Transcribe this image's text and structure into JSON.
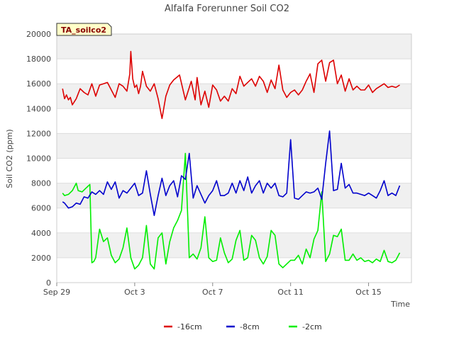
{
  "chart_data": {
    "type": "line",
    "title": "Alfalfa Forerunner Soil CO2",
    "xlabel": "Time",
    "ylabel": "Soil CO2 (ppm)",
    "ylim": [
      0,
      20000
    ],
    "xlim": [
      0,
      18.2
    ],
    "yticks": [
      0,
      2000,
      4000,
      6000,
      8000,
      10000,
      12000,
      14000,
      16000,
      18000,
      20000
    ],
    "yticklabels": [
      "0",
      "2000",
      "4000",
      "6000",
      "8000",
      "10000",
      "12000",
      "14000",
      "16000",
      "18000",
      "20000"
    ],
    "xticks": [
      0,
      4,
      8,
      12,
      16
    ],
    "xticklabels": [
      "Sep 29",
      "Oct 3",
      "Oct 7",
      "Oct 11",
      "Oct 15"
    ],
    "banded_background": true,
    "badge": "TA_soilco2",
    "legend_position": "bottom-center",
    "series": [
      {
        "name": "-16cm",
        "color": "#dd0000",
        "x": [
          0.3,
          0.4,
          0.5,
          0.6,
          0.7,
          0.8,
          1.0,
          1.2,
          1.4,
          1.6,
          1.8,
          2.0,
          2.2,
          2.4,
          2.6,
          2.8,
          3.0,
          3.2,
          3.4,
          3.6,
          3.75,
          3.8,
          3.9,
          4.0,
          4.1,
          4.2,
          4.3,
          4.4,
          4.6,
          4.8,
          5.0,
          5.2,
          5.4,
          5.6,
          5.8,
          6.0,
          6.3,
          6.6,
          6.9,
          7.1,
          7.2,
          7.4,
          7.6,
          7.8,
          8.0,
          8.2,
          8.4,
          8.6,
          8.8,
          9.0,
          9.2,
          9.4,
          9.6,
          9.8,
          10.0,
          10.2,
          10.4,
          10.6,
          10.8,
          11.0,
          11.2,
          11.4,
          11.6,
          11.8,
          12.0,
          12.2,
          12.4,
          12.6,
          12.8,
          13.0,
          13.2,
          13.4,
          13.6,
          13.8,
          14.0,
          14.2,
          14.4,
          14.6,
          14.8,
          15.0,
          15.2,
          15.4,
          15.6,
          15.8,
          16.0,
          16.2,
          16.4,
          16.6,
          16.8,
          17.0,
          17.2,
          17.4,
          17.6
        ],
        "values": [
          15600,
          14800,
          15100,
          14700,
          14900,
          14300,
          14800,
          15600,
          15300,
          15100,
          16000,
          15000,
          15900,
          16000,
          16100,
          15500,
          14900,
          16000,
          15800,
          15400,
          16800,
          18600,
          16400,
          15700,
          15900,
          15200,
          15800,
          17000,
          15800,
          15400,
          16000,
          14800,
          13200,
          15000,
          15900,
          16300,
          16700,
          14700,
          16200,
          14700,
          16500,
          14300,
          15400,
          14100,
          15900,
          15500,
          14600,
          15000,
          14600,
          15600,
          15200,
          16600,
          15800,
          16100,
          16400,
          15800,
          16600,
          16200,
          15300,
          16300,
          15600,
          17500,
          15500,
          14900,
          15300,
          15500,
          15100,
          15500,
          16200,
          16800,
          15300,
          17600,
          17900,
          16200,
          17700,
          17900,
          16000,
          16700,
          15400,
          16400,
          15500,
          15800,
          15500,
          15500,
          15900,
          15300,
          15600,
          15800,
          16000,
          15700,
          15800,
          15700,
          15900
        ]
      },
      {
        "name": "-8cm",
        "color": "#0000cc",
        "x": [
          0.3,
          0.4,
          0.6,
          0.8,
          1.0,
          1.2,
          1.4,
          1.6,
          1.8,
          2.0,
          2.2,
          2.4,
          2.6,
          2.8,
          3.0,
          3.2,
          3.4,
          3.6,
          3.8,
          4.0,
          4.2,
          4.4,
          4.6,
          4.8,
          5.0,
          5.2,
          5.4,
          5.6,
          5.8,
          6.0,
          6.2,
          6.4,
          6.6,
          6.8,
          7.0,
          7.2,
          7.4,
          7.6,
          7.8,
          8.0,
          8.2,
          8.4,
          8.6,
          8.8,
          9.0,
          9.2,
          9.4,
          9.6,
          9.8,
          10.0,
          10.2,
          10.4,
          10.6,
          10.8,
          11.0,
          11.2,
          11.4,
          11.6,
          11.8,
          12.0,
          12.2,
          12.4,
          12.6,
          12.8,
          13.0,
          13.2,
          13.4,
          13.6,
          13.8,
          14.0,
          14.2,
          14.4,
          14.6,
          14.8,
          15.0,
          15.2,
          15.4,
          15.6,
          15.8,
          16.0,
          16.2,
          16.4,
          16.6,
          16.8,
          17.0,
          17.2,
          17.4,
          17.6
        ],
        "values": [
          6500,
          6400,
          6000,
          6100,
          6400,
          6300,
          6900,
          6800,
          7300,
          7100,
          7400,
          7100,
          8100,
          7500,
          8100,
          6800,
          7400,
          7200,
          7600,
          8000,
          7000,
          7200,
          9000,
          7100,
          5400,
          7000,
          8400,
          7000,
          7800,
          8200,
          6900,
          8600,
          8300,
          10400,
          6800,
          7800,
          7100,
          6400,
          7000,
          7400,
          8200,
          7000,
          7000,
          7200,
          8000,
          7200,
          8200,
          7400,
          8500,
          7200,
          7800,
          8200,
          7200,
          8000,
          7600,
          8000,
          7000,
          6900,
          7200,
          11500,
          6800,
          6700,
          7000,
          7300,
          7200,
          7300,
          7600,
          6700,
          9600,
          12200,
          7400,
          7500,
          9600,
          7600,
          7900,
          7200,
          7200,
          7100,
          7000,
          7200,
          7000,
          6800,
          7400,
          8200,
          7000,
          7200,
          7000,
          7800
        ]
      },
      {
        "name": "-2cm",
        "color": "#00ee00",
        "x": [
          0.3,
          0.4,
          0.6,
          0.8,
          1.0,
          1.1,
          1.3,
          1.5,
          1.7,
          1.8,
          1.9,
          2.0,
          2.2,
          2.4,
          2.6,
          2.8,
          3.0,
          3.2,
          3.4,
          3.6,
          3.8,
          4.0,
          4.2,
          4.4,
          4.6,
          4.8,
          5.0,
          5.2,
          5.4,
          5.6,
          5.8,
          6.0,
          6.2,
          6.4,
          6.6,
          6.8,
          7.0,
          7.2,
          7.4,
          7.6,
          7.8,
          8.0,
          8.2,
          8.4,
          8.6,
          8.8,
          9.0,
          9.2,
          9.4,
          9.6,
          9.8,
          10.0,
          10.2,
          10.4,
          10.6,
          10.8,
          11.0,
          11.2,
          11.4,
          11.6,
          11.8,
          12.0,
          12.2,
          12.4,
          12.6,
          12.8,
          13.0,
          13.2,
          13.4,
          13.6,
          13.8,
          14.0,
          14.2,
          14.4,
          14.6,
          14.8,
          15.0,
          15.2,
          15.4,
          15.6,
          15.8,
          16.0,
          16.2,
          16.4,
          16.6,
          16.8,
          17.0,
          17.2,
          17.4,
          17.6
        ],
        "values": [
          7200,
          7000,
          7100,
          7400,
          8000,
          7400,
          7300,
          7600,
          7900,
          1600,
          1700,
          2000,
          4300,
          3300,
          3600,
          2200,
          1600,
          1900,
          2800,
          4400,
          2000,
          1100,
          1400,
          2000,
          4600,
          1500,
          1100,
          3600,
          4000,
          1500,
          3300,
          4400,
          5000,
          5800,
          10400,
          2000,
          2300,
          1900,
          2800,
          5300,
          2000,
          1700,
          1800,
          3600,
          2400,
          1600,
          1900,
          3400,
          4200,
          1800,
          2000,
          3800,
          3400,
          2000,
          1500,
          2100,
          4200,
          3800,
          1500,
          1200,
          1500,
          1800,
          1800,
          2200,
          1500,
          2700,
          2000,
          3500,
          4200,
          7300,
          1700,
          2300,
          3800,
          3700,
          4300,
          1800,
          1800,
          2300,
          1800,
          2000,
          1700,
          1800,
          1600,
          1900,
          1700,
          2600,
          1700,
          1600,
          1800,
          2400
        ]
      }
    ]
  }
}
